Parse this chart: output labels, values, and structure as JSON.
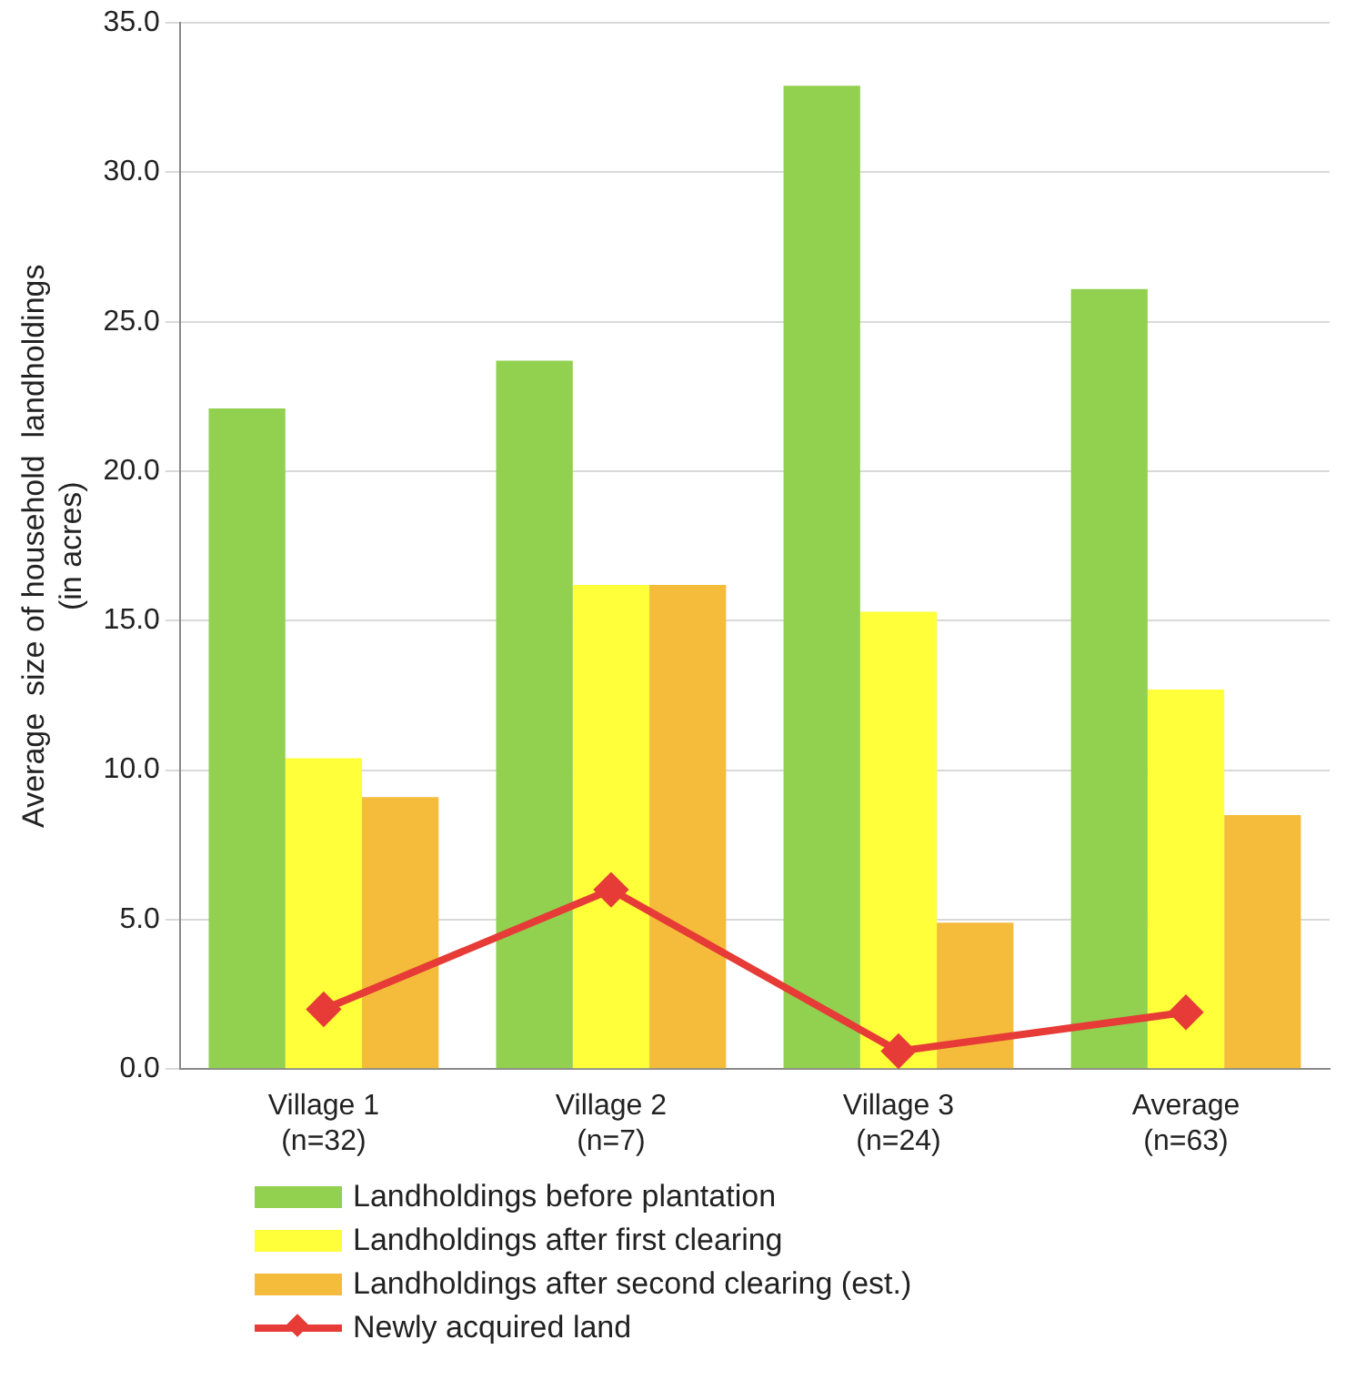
{
  "chart_data": {
    "type": "bar",
    "ylabel": "Average  size of household  landholdings\n(in acres)",
    "categories": [
      "Village 1\n(n=32)",
      "Village 2\n(n=7)",
      "Village 3\n(n=24)",
      "Average\n(n=63)"
    ],
    "series": [
      {
        "name": "Landholdings before plantation",
        "color": "#92d050",
        "values": [
          22.1,
          23.7,
          32.9,
          26.1
        ]
      },
      {
        "name": "Landholdings after first clearing",
        "color": "#ffff3a",
        "values": [
          10.4,
          16.2,
          15.3,
          12.7
        ]
      },
      {
        "name": "Landholdings after second clearing (est.)",
        "color": "#f4bc3a",
        "values": [
          9.1,
          16.2,
          4.9,
          8.5
        ]
      },
      {
        "name": "Newly acquired land",
        "type": "line",
        "color": "#e63b37",
        "values": [
          2.0,
          6.0,
          0.6,
          1.9
        ],
        "marker": "diamond",
        "line_style": "solid"
      }
    ],
    "ylim": [
      0,
      35
    ],
    "yticks": [
      {
        "value": 0,
        "label": "0.0"
      },
      {
        "value": 5,
        "label": "5.0"
      },
      {
        "value": 10,
        "label": "10.0"
      },
      {
        "value": 15,
        "label": "15.0"
      },
      {
        "value": 20,
        "label": "20.0"
      },
      {
        "value": 25,
        "label": "25.0"
      },
      {
        "value": 30,
        "label": "30.0"
      },
      {
        "value": 35,
        "label": "35.0"
      }
    ],
    "grid": "y",
    "legend": "bottom"
  }
}
